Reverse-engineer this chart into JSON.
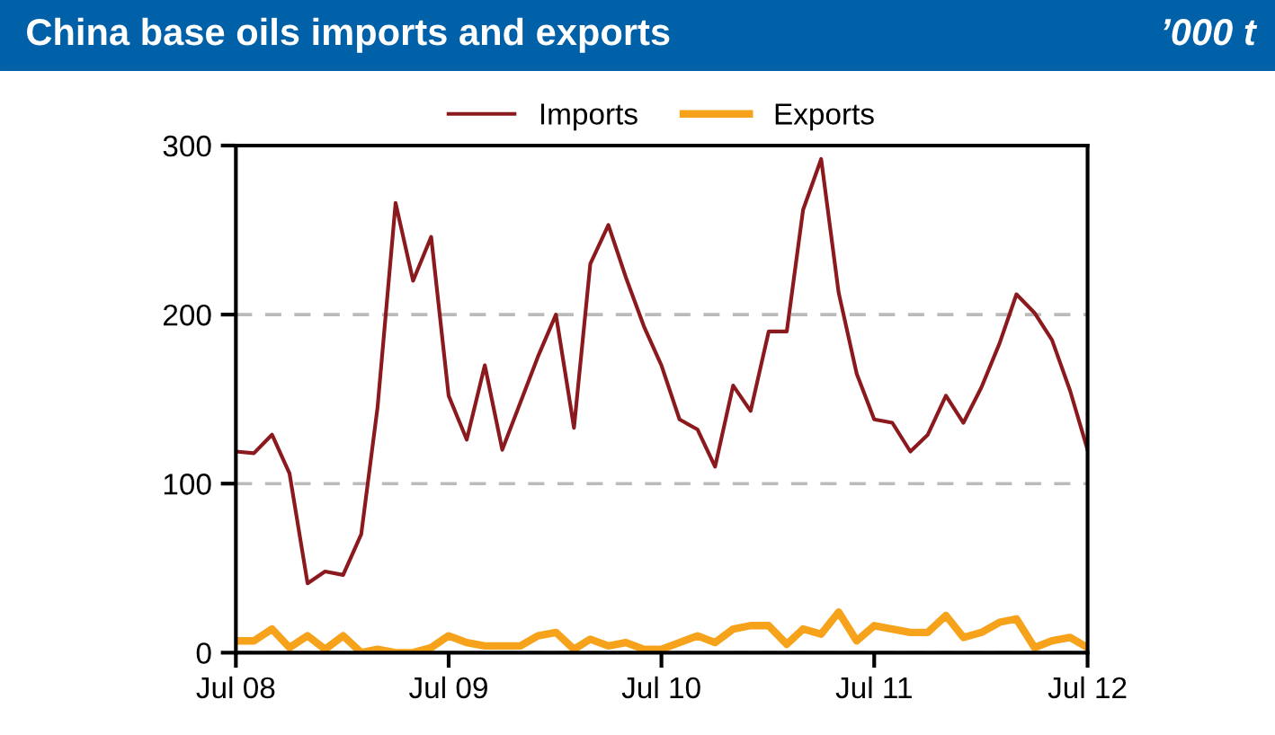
{
  "chart_data": {
    "type": "line",
    "title": "China base oils imports and exports",
    "subtitle": "’000 t",
    "x": [
      "2008-07",
      "2008-08",
      "2008-09",
      "2008-10",
      "2008-11",
      "2008-12",
      "2009-01",
      "2009-02",
      "2009-03",
      "2009-04",
      "2009-05",
      "2009-06",
      "2009-07",
      "2009-08",
      "2009-09",
      "2009-10",
      "2009-11",
      "2009-12",
      "2010-01",
      "2010-02",
      "2010-03",
      "2010-04",
      "2010-05",
      "2010-06",
      "2010-07",
      "2010-08",
      "2010-09",
      "2010-10",
      "2010-11",
      "2010-12",
      "2011-01",
      "2011-02",
      "2011-03",
      "2011-04",
      "2011-05",
      "2011-06",
      "2011-07",
      "2011-08",
      "2011-09",
      "2011-10",
      "2011-11",
      "2011-12",
      "2012-01",
      "2012-02",
      "2012-03",
      "2012-04",
      "2012-05",
      "2012-06",
      "2012-07"
    ],
    "series": [
      {
        "name": "Imports",
        "color": "#8b1a1f",
        "values": [
          119,
          118,
          129,
          106,
          41,
          48,
          46,
          70,
          145,
          266,
          220,
          246,
          152,
          126,
          170,
          120,
          148,
          175,
          200,
          133,
          230,
          253,
          222,
          193,
          170,
          138,
          132,
          110,
          158,
          143,
          190,
          190,
          262,
          292,
          213,
          165,
          138,
          136,
          119,
          129,
          152,
          136,
          157,
          183,
          212,
          201,
          185,
          155,
          120
        ]
      },
      {
        "name": "Exports",
        "color": "#f7a21b",
        "values": [
          7,
          7,
          14,
          3,
          10,
          2,
          10,
          0,
          2,
          0,
          0,
          3,
          10,
          6,
          4,
          4,
          4,
          10,
          12,
          2,
          8,
          4,
          6,
          2,
          2,
          6,
          10,
          6,
          14,
          16,
          16,
          5,
          14,
          11,
          24,
          7,
          16,
          14,
          12,
          12,
          22,
          9,
          12,
          18,
          20,
          3,
          7,
          9,
          3
        ]
      }
    ],
    "xlim": [
      "2008-07",
      "2012-07"
    ],
    "xticks": [
      {
        "value": "2008-07",
        "label": "Jul 08"
      },
      {
        "value": "2009-07",
        "label": "Jul 09"
      },
      {
        "value": "2010-07",
        "label": "Jul 10"
      },
      {
        "value": "2011-07",
        "label": "Jul 11"
      },
      {
        "value": "2012-07",
        "label": "Jul 12"
      }
    ],
    "ylim": [
      0,
      300
    ],
    "yticks": [
      0,
      100,
      200,
      300
    ],
    "grid": "y",
    "legend": "top",
    "line_style": "solid",
    "marker": "none"
  }
}
